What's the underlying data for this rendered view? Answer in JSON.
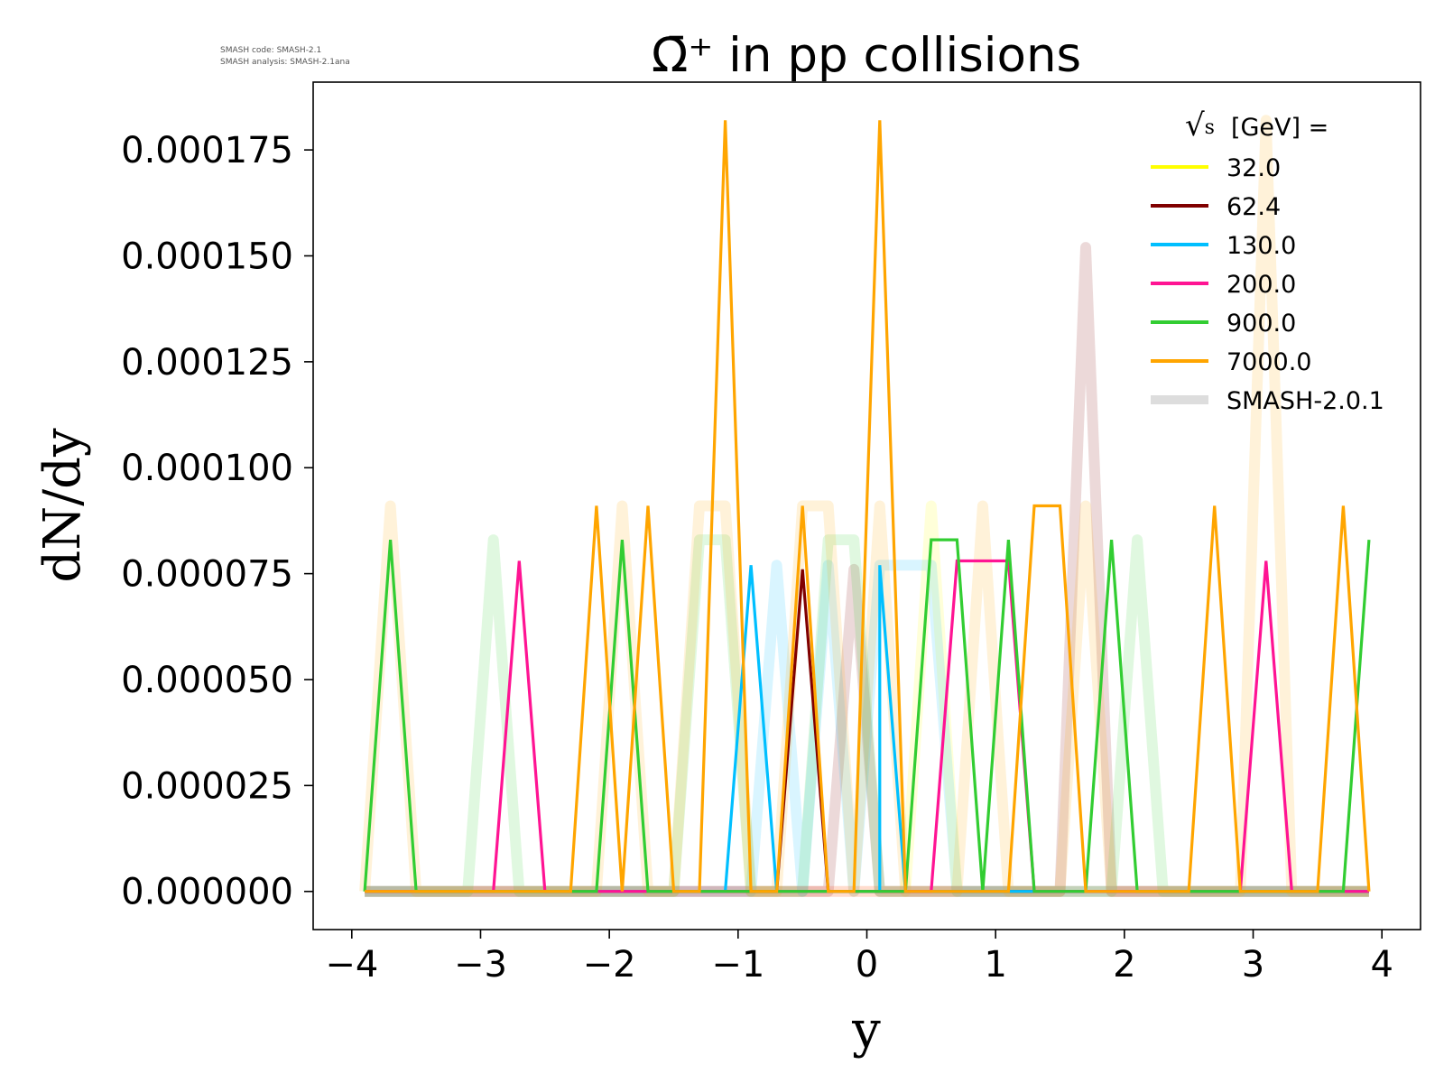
{
  "meta": {
    "line1": "SMASH code:      SMASH-2.1",
    "line2": "SMASH analysis: SMASH-2.1ana"
  },
  "chart_data": {
    "type": "line",
    "title": "Ω̄⁺ in pp collisions",
    "xlabel": "y",
    "ylabel": "dN/dy",
    "xlim": [
      -4.3,
      4.3
    ],
    "ylim": [
      -9e-06,
      0.000191
    ],
    "xticks": [
      -4,
      -3,
      -2,
      -1,
      0,
      1,
      2,
      3,
      4
    ],
    "xtick_labels": [
      "−4",
      "−3",
      "−2",
      "−1",
      "0",
      "1",
      "2",
      "3",
      "4"
    ],
    "yticks": [
      0,
      2.5e-05,
      5e-05,
      7.5e-05,
      0.0001,
      0.000125,
      0.00015,
      0.000175
    ],
    "ytick_labels": [
      "0.000000",
      "0.000025",
      "0.000050",
      "0.000075",
      "0.000100",
      "0.000125",
      "0.000150",
      "0.000175"
    ],
    "legend_title": "√s  [GeV] =",
    "legend_title_parts": {
      "root": "√",
      "var": "s",
      "unit": "[GeV] ="
    },
    "legend_position": "top-right",
    "series": [
      {
        "name": "32.0",
        "color": "#ffff00",
        "x": [
          -3.9,
          3.9
        ],
        "y": [
          0,
          0
        ]
      },
      {
        "name": "62.4",
        "color": "#800000",
        "x": [
          -3.9,
          -0.7,
          -0.5,
          -0.3,
          3.9
        ],
        "y": [
          0,
          0,
          7.6e-05,
          0,
          0
        ]
      },
      {
        "name": "130.0",
        "color": "#00bfff",
        "x": [
          -3.9,
          -1.1,
          -0.9,
          -0.7,
          0.1,
          0.1,
          0.3,
          3.9
        ],
        "y": [
          0,
          0,
          7.7e-05,
          0,
          0,
          7.7e-05,
          0,
          0
        ]
      },
      {
        "name": "200.0",
        "color": "#ff1493",
        "x": [
          -3.9,
          -2.9,
          -2.7,
          -2.5,
          -1.9,
          0.5,
          0.7,
          0.9,
          1.1,
          1.3,
          2.9,
          3.1,
          3.3,
          3.9
        ],
        "y": [
          0,
          0,
          7.8e-05,
          0,
          0,
          0,
          7.8e-05,
          7.8e-05,
          7.8e-05,
          0,
          0,
          7.8e-05,
          0,
          0
        ]
      },
      {
        "name": "900.0",
        "color": "#32cd32",
        "x": [
          -3.9,
          -3.7,
          -3.5,
          -2.1,
          -1.9,
          -1.7,
          0.3,
          0.5,
          0.7,
          0.9,
          1.1,
          1.3,
          1.7,
          1.9,
          2.1,
          3.7,
          3.9
        ],
        "y": [
          0,
          8.3e-05,
          0,
          0,
          8.3e-05,
          0,
          0,
          8.3e-05,
          8.3e-05,
          0,
          8.3e-05,
          0,
          0,
          8.3e-05,
          0,
          0,
          8.3e-05
        ]
      },
      {
        "name": "7000.0",
        "color": "#ffa500",
        "x": [
          -3.9,
          -2.3,
          -2.1,
          -1.9,
          -1.7,
          -1.5,
          -1.3,
          -1.1,
          -0.9,
          -0.7,
          -0.5,
          -0.3,
          -0.1,
          0.1,
          0.3,
          1.1,
          1.3,
          1.5,
          1.7,
          2.5,
          2.7,
          2.9,
          3.5,
          3.7,
          3.9
        ],
        "y": [
          0,
          0,
          9.1e-05,
          0,
          9.1e-05,
          0,
          0,
          0.000182,
          0,
          0,
          9.1e-05,
          0,
          0,
          0.000182,
          0,
          0,
          9.1e-05,
          9.1e-05,
          0,
          0,
          9.1e-05,
          0,
          0,
          9.1e-05,
          0
        ]
      }
    ],
    "reference": {
      "name": "SMASH-2.0.1",
      "legend_color": "#dddddd",
      "series": [
        {
          "color": "#ffff00",
          "x": [
            -3.9,
            0.3,
            0.5,
            0.7,
            3.9
          ],
          "y": [
            0,
            0,
            9.1e-05,
            0,
            0
          ]
        },
        {
          "color": "#800000",
          "x": [
            -3.9,
            -0.3,
            -0.1,
            0.1,
            1.5,
            1.7,
            1.9,
            3.9
          ],
          "y": [
            0,
            0,
            7.6e-05,
            0,
            0,
            0.000152,
            0,
            0
          ]
        },
        {
          "color": "#00bfff",
          "x": [
            -3.9,
            -0.9,
            -0.7,
            -0.5,
            -0.3,
            -0.1,
            0.1,
            0.5,
            0.7,
            3.9
          ],
          "y": [
            0,
            0,
            7.7e-05,
            0,
            7.7e-05,
            0,
            7.7e-05,
            7.7e-05,
            0,
            0
          ]
        },
        {
          "color": "#ff1493",
          "x": [
            -3.9,
            3.9
          ],
          "y": [
            0,
            0
          ]
        },
        {
          "color": "#32cd32",
          "x": [
            -3.9,
            -3.1,
            -2.9,
            -2.7,
            -1.5,
            -1.3,
            -1.1,
            -0.9,
            -0.5,
            -0.3,
            -0.1,
            0.1,
            1.9,
            2.1,
            2.3,
            3.9
          ],
          "y": [
            0,
            0,
            8.3e-05,
            0,
            0,
            8.3e-05,
            8.3e-05,
            0,
            0,
            8.3e-05,
            8.3e-05,
            0,
            0,
            8.3e-05,
            0,
            0
          ]
        },
        {
          "color": "#ffa500",
          "x": [
            -3.9,
            -3.7,
            -3.5,
            -2.1,
            -1.9,
            -1.7,
            -1.5,
            -1.3,
            -1.1,
            -0.9,
            -0.7,
            -0.5,
            -0.3,
            -0.1,
            0.1,
            0.3,
            0.7,
            0.9,
            1.1,
            1.5,
            1.7,
            1.9,
            2.9,
            3.1,
            3.3,
            3.9
          ],
          "y": [
            0,
            9.1e-05,
            0,
            0,
            9.1e-05,
            0,
            0,
            9.1e-05,
            9.1e-05,
            0,
            0,
            9.1e-05,
            9.1e-05,
            0,
            9.1e-05,
            0,
            0,
            9.1e-05,
            0,
            0,
            9.1e-05,
            0,
            0,
            0.000182,
            0,
            0
          ]
        }
      ]
    }
  }
}
